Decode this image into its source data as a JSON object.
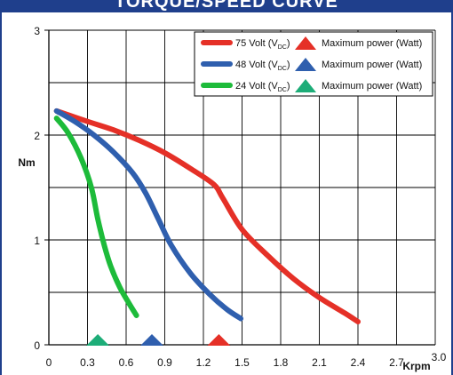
{
  "header": {
    "title": "TORQUE/SPEED CURVE"
  },
  "colors": {
    "frame": "#1f3f8c",
    "grid": "#000000",
    "series_75": "#e53027",
    "series_48": "#2f5fae",
    "series_24": "#1dbb3a",
    "triangle_75": "#e53027",
    "triangle_48": "#2f5fae",
    "triangle_24": "#1dad78"
  },
  "chart_data": {
    "type": "line",
    "ylabel": "Nm",
    "xlabel": "Krpm",
    "xlim": [
      0,
      3.0
    ],
    "ylim": [
      0,
      3
    ],
    "xticks": [
      "0",
      "0.3",
      "0.6",
      "0.9",
      "1.2",
      "1.5",
      "1.8",
      "2.1",
      "2.4",
      "2.7",
      "3.0"
    ],
    "yticks": [
      "0",
      "1",
      "2",
      "3"
    ],
    "grid": true,
    "legend_position": "top-right",
    "legend": [
      {
        "voltage": "75 Volt (V",
        "sub": "DC",
        "close": ")",
        "power_label": "Maximum power (Watt)"
      },
      {
        "voltage": "48 Volt (V",
        "sub": "DC",
        "close": ")",
        "power_label": "Maximum power (Watt)"
      },
      {
        "voltage": "24 Volt (V",
        "sub": "DC",
        "close": ")",
        "power_label": "Maximum power (Watt)"
      }
    ],
    "series": [
      {
        "name": "75 Volt (VDC)",
        "color": "#e53027",
        "x": [
          0.06,
          0.3,
          0.5,
          0.7,
          0.9,
          1.1,
          1.28,
          1.35,
          1.5,
          1.7,
          1.9,
          2.1,
          2.3,
          2.4
        ],
        "y": [
          2.23,
          2.13,
          2.05,
          1.95,
          1.83,
          1.68,
          1.53,
          1.4,
          1.1,
          0.85,
          0.63,
          0.45,
          0.3,
          0.22
        ]
      },
      {
        "name": "48 Volt (VDC)",
        "color": "#2f5fae",
        "x": [
          0.06,
          0.2,
          0.35,
          0.5,
          0.65,
          0.75,
          0.85,
          0.95,
          1.1,
          1.25,
          1.38,
          1.49
        ],
        "y": [
          2.23,
          2.13,
          2.0,
          1.84,
          1.64,
          1.45,
          1.2,
          0.95,
          0.68,
          0.48,
          0.34,
          0.25
        ]
      },
      {
        "name": "24 Volt (VDC)",
        "color": "#1dbb3a",
        "x": [
          0.06,
          0.15,
          0.25,
          0.33,
          0.38,
          0.43,
          0.48,
          0.55,
          0.62,
          0.68
        ],
        "y": [
          2.16,
          2.02,
          1.78,
          1.5,
          1.2,
          0.95,
          0.75,
          0.55,
          0.4,
          0.28
        ]
      }
    ],
    "max_power_markers": [
      {
        "series": "75 Volt (VDC)",
        "x": 1.32,
        "color": "#e53027"
      },
      {
        "series": "48 Volt (VDC)",
        "x": 0.8,
        "color": "#2f5fae"
      },
      {
        "series": "24 Volt (VDC)",
        "x": 0.38,
        "color": "#1dad78"
      }
    ]
  }
}
